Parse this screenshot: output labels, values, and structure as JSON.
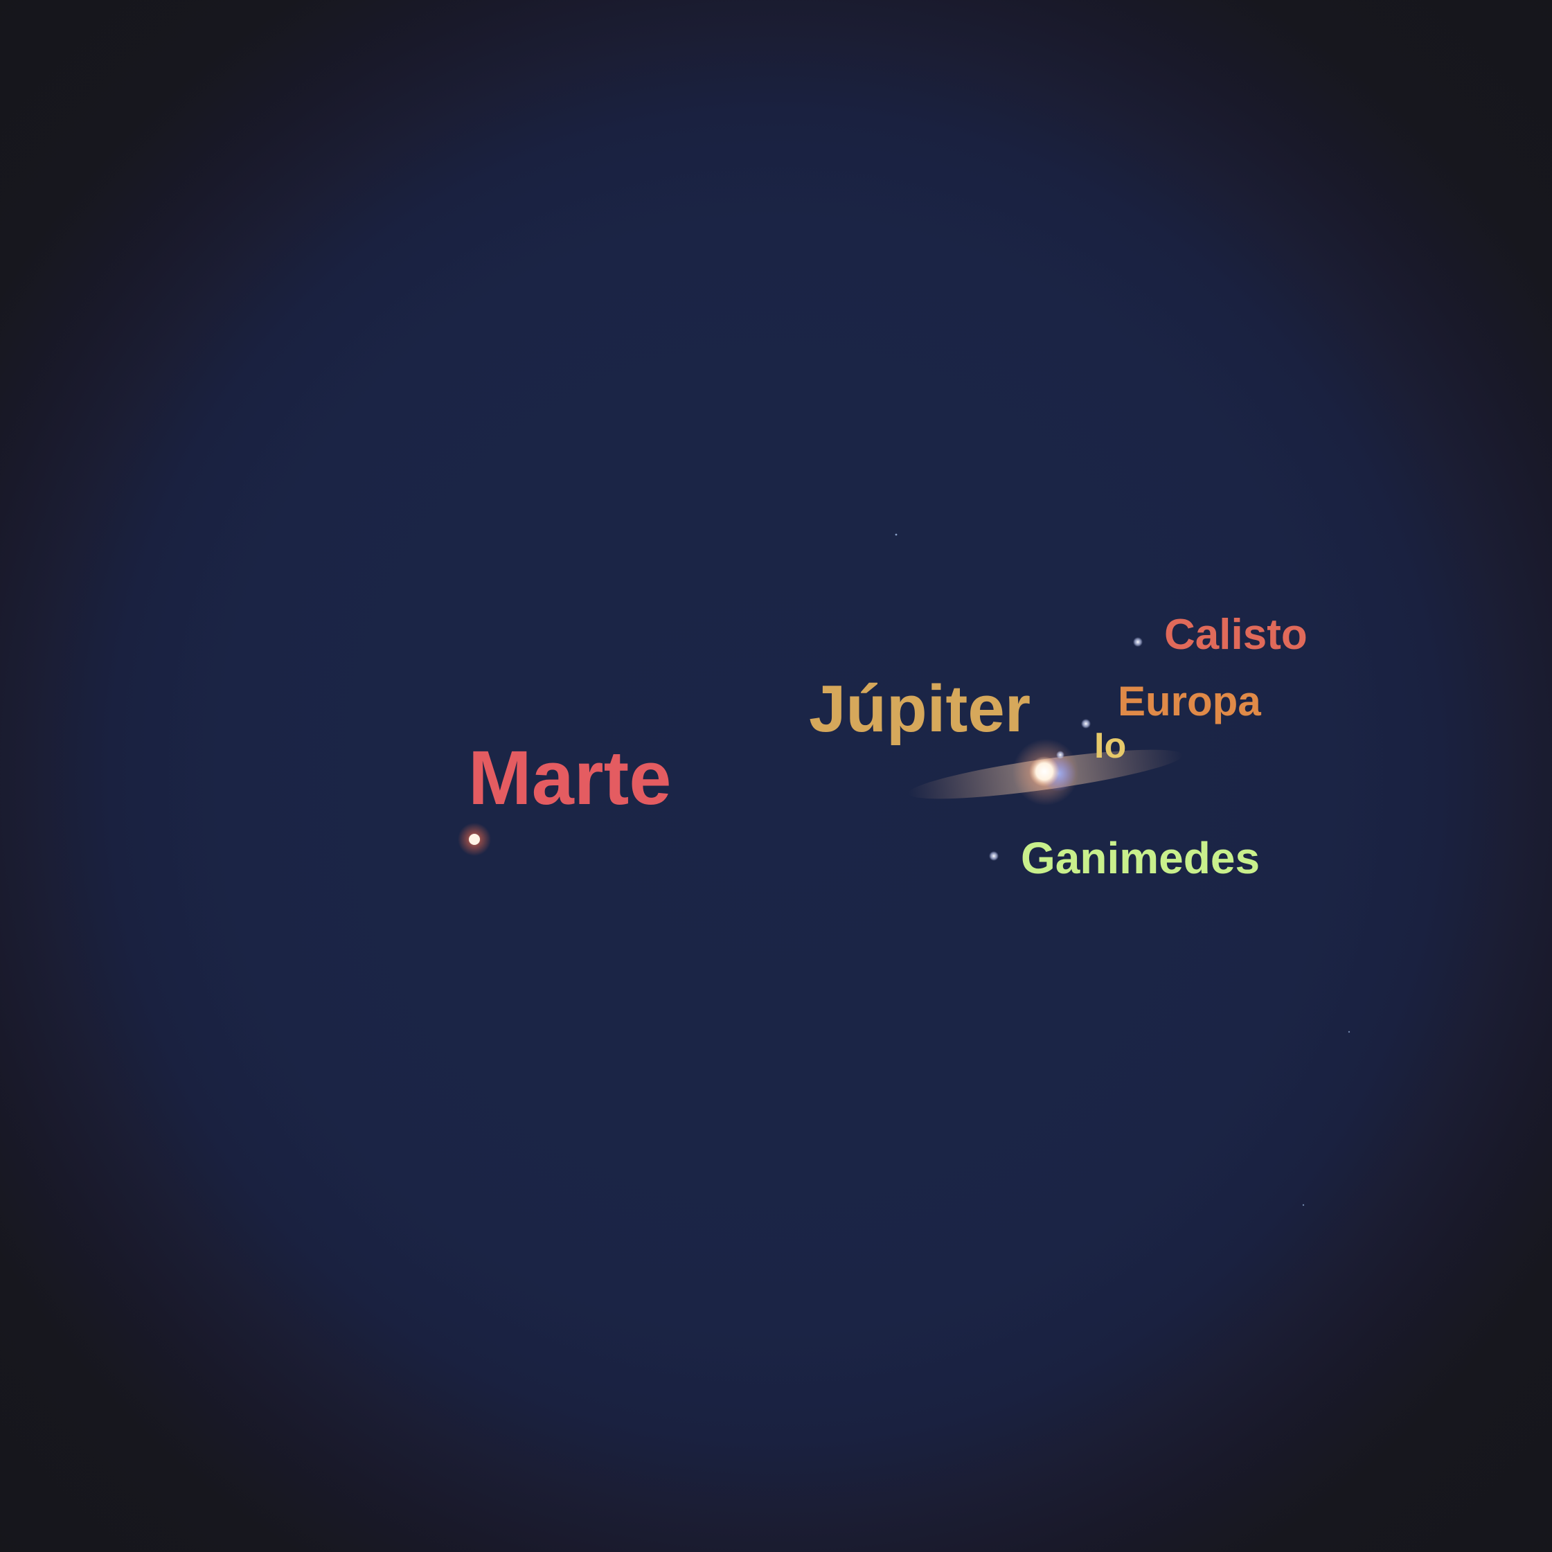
{
  "labels": {
    "marte": "Marte",
    "jupiter": "Júpiter",
    "calisto": "Calisto",
    "europa": "Europa",
    "io": "Io",
    "ganimedes": "Ganimedes"
  },
  "colors": {
    "sky": "#1b2546",
    "marte": "#e45c61",
    "jupiter": "#d6a85b",
    "calisto": "#e06a5a",
    "europa": "#e08a48",
    "io": "#e6c96a",
    "ganimedes": "#c9f08c"
  }
}
